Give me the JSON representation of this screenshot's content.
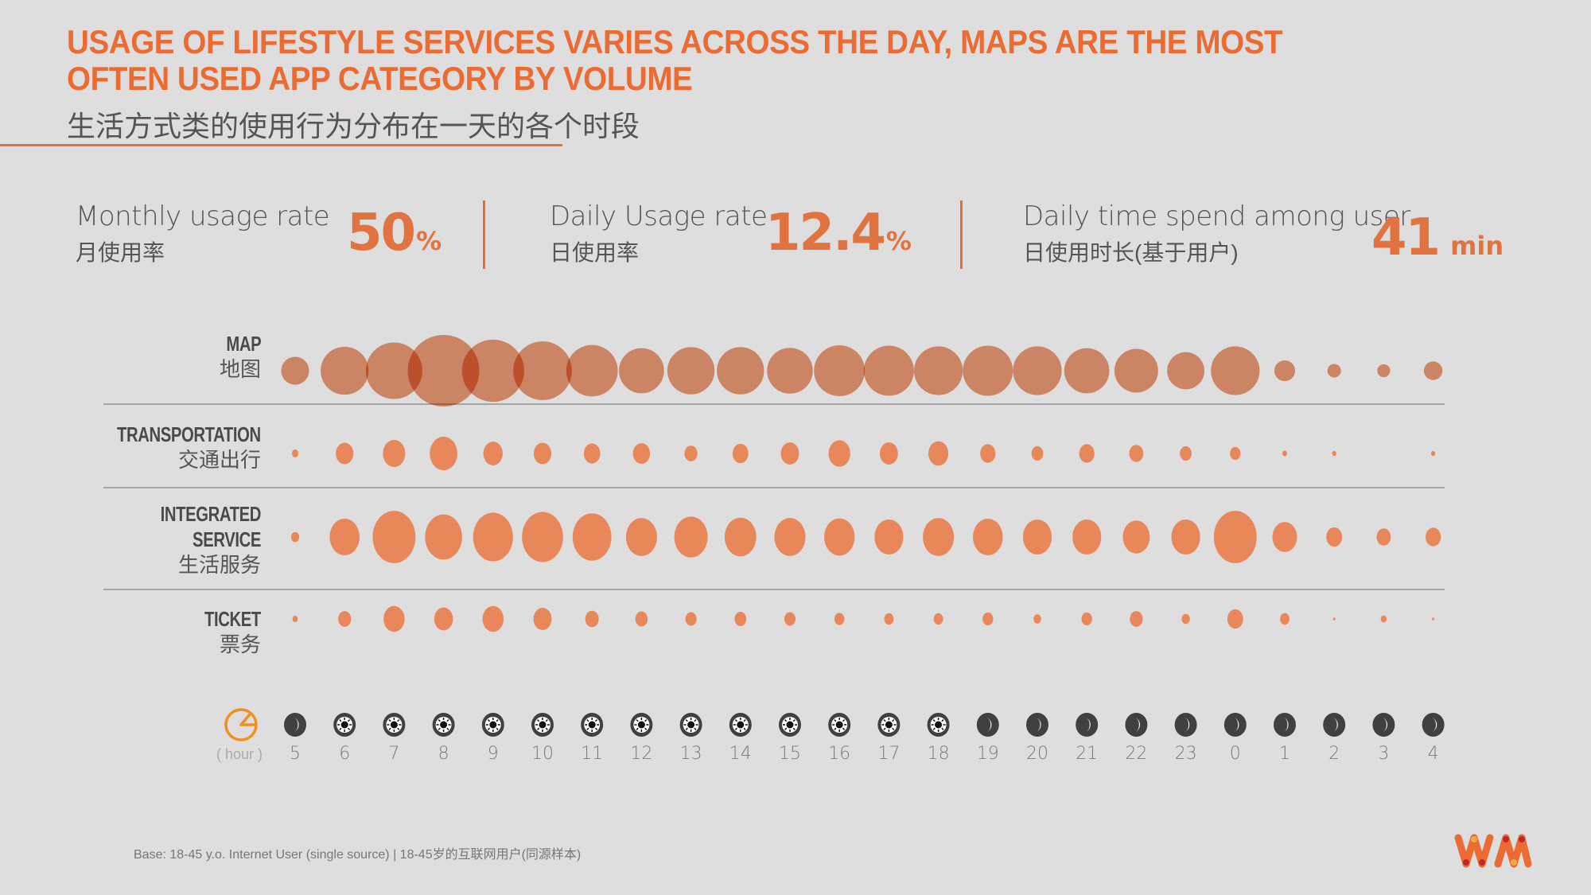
{
  "header": {
    "title_line1": "USAGE OF LIFESTYLE SERVICES VARIES ACROSS THE DAY, MAPS ARE THE MOST",
    "title_line2": "OFTEN USED APP CATEGORY BY VOLUME",
    "subtitle_cn": "生活方式类的使用行为分布在一天的各个时段"
  },
  "kpis": [
    {
      "label_en": "Monthly usage rate",
      "label_cn": "月使用率",
      "value": "50",
      "unit": "%"
    },
    {
      "label_en": "Daily Usage rate",
      "label_cn": "日使用率",
      "value": "12.4",
      "unit": "%"
    },
    {
      "label_en": "Daily time spend among user",
      "label_cn": "日使用时长(基于用户)",
      "value": "41",
      "unit": "min"
    }
  ],
  "colors": {
    "accent": "#ec6b33",
    "bubble": "#e8875a",
    "text": "#555555",
    "icon_dark": "#3f403f",
    "clock": "#f0901e"
  },
  "axis": {
    "unit_label": "( hour )",
    "clock_icon": "clock-icon",
    "hours": [
      "5",
      "6",
      "7",
      "8",
      "9",
      "10",
      "11",
      "12",
      "13",
      "14",
      "15",
      "16",
      "17",
      "18",
      "19",
      "20",
      "21",
      "22",
      "23",
      "0",
      "1",
      "2",
      "3",
      "4"
    ],
    "period_icons": [
      "moon",
      "sun",
      "sun",
      "sun",
      "sun",
      "sun",
      "sun",
      "sun",
      "sun",
      "sun",
      "sun",
      "sun",
      "sun",
      "sun",
      "moon",
      "moon",
      "moon",
      "moon",
      "moon",
      "moon",
      "moon",
      "moon",
      "moon",
      "moon"
    ]
  },
  "chart_data": {
    "type": "scatter",
    "subtype": "bubble-matrix",
    "title": "USAGE OF LIFESTYLE SERVICES VARIES ACROSS THE DAY, MAPS ARE THE MOST OFTEN USED APP CATEGORY BY VOLUME",
    "xlabel": "( hour )",
    "ylabel": "",
    "value_note": "relative usage volume index (bubble size; largest bubble = 100)",
    "categories": [
      "5",
      "6",
      "7",
      "8",
      "9",
      "10",
      "11",
      "12",
      "13",
      "14",
      "15",
      "16",
      "17",
      "18",
      "19",
      "20",
      "21",
      "22",
      "23",
      "0",
      "1",
      "2",
      "3",
      "4"
    ],
    "series": [
      {
        "name": "MAP",
        "name_cn": "地图",
        "values": [
          39,
          67,
          79,
          100,
          87,
          82,
          72,
          63,
          66,
          66,
          64,
          71,
          70,
          68,
          70,
          68,
          63,
          61,
          52,
          68,
          29,
          19,
          18,
          26
        ]
      },
      {
        "name": "TRANSPORTATION",
        "name_cn": "交通出行",
        "values": [
          11,
          30,
          38,
          47,
          33,
          30,
          28,
          29,
          22,
          27,
          31,
          37,
          31,
          34,
          26,
          20,
          26,
          24,
          20,
          18,
          8,
          7,
          0,
          7
        ]
      },
      {
        "name": "INTEGRATED SERVICE",
        "name_cn": "生活服务",
        "values": [
          14,
          51,
          73,
          63,
          68,
          70,
          66,
          53,
          57,
          54,
          53,
          52,
          49,
          53,
          51,
          49,
          49,
          46,
          49,
          73,
          42,
          27,
          24,
          26
        ]
      },
      {
        "name": "TICKET",
        "name_cn": "票务",
        "values": [
          9,
          22,
          36,
          32,
          36,
          31,
          23,
          21,
          19,
          20,
          19,
          17,
          16,
          16,
          18,
          13,
          18,
          22,
          14,
          27,
          16,
          4,
          10,
          4
        ]
      }
    ],
    "legend": "none",
    "grid": false
  },
  "footnote": "Base: 18-45 y.o. Internet User (single source) | 18-45岁的互联网用户(同源样本)",
  "logo": {
    "name": "WM",
    "icon": "wm-logo-icon"
  }
}
